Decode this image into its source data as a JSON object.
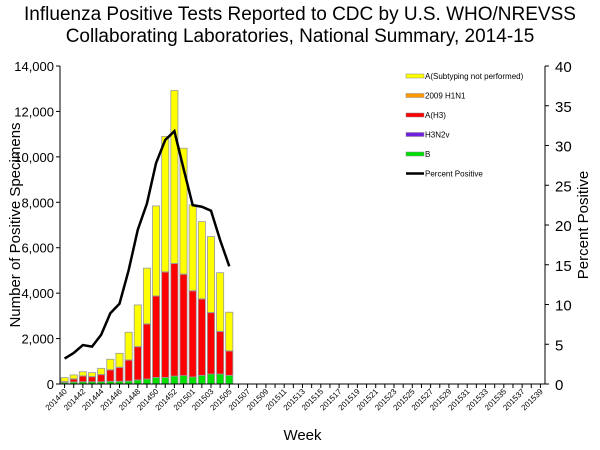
{
  "chart_data": {
    "type": "bar",
    "title_line1": "Influenza Positive Tests Reported to CDC by U.S. WHO/NREVSS",
    "title_line2": "Collaborating Laboratories, National Summary, 2014-15",
    "xlabel": "Week",
    "ylabel": "Number of Positive Specimens",
    "y2label": "Percent Positive",
    "ylim": [
      0,
      14000
    ],
    "y2lim": [
      0,
      40
    ],
    "yticks": [
      "0",
      "2,000",
      "4,000",
      "6,000",
      "8,000",
      "10,000",
      "12,000",
      "14,000"
    ],
    "y2ticks": [
      "0",
      "5",
      "10",
      "15",
      "20",
      "25",
      "30",
      "35",
      "40"
    ],
    "weeks": [
      "201440",
      "201441",
      "201442",
      "201443",
      "201444",
      "201445",
      "201446",
      "201447",
      "201448",
      "201449",
      "201450",
      "201451",
      "201452",
      "201453",
      "201501",
      "201502",
      "201503",
      "201504",
      "201505",
      "201506",
      "201507",
      "201508",
      "201509",
      "201510",
      "201511",
      "201512",
      "201513",
      "201514",
      "201515",
      "201516",
      "201517",
      "201518",
      "201519",
      "201520",
      "201521",
      "201522",
      "201523",
      "201524",
      "201525",
      "201526",
      "201527",
      "201528",
      "201529",
      "201530",
      "201531",
      "201532",
      "201533",
      "201534",
      "201535",
      "201536",
      "201537",
      "201538",
      "201539"
    ],
    "xtick_labels": [
      "201440",
      "201442",
      "201444",
      "201446",
      "201448",
      "201450",
      "201452",
      "201501",
      "201503",
      "201505",
      "201507",
      "201509",
      "201511",
      "201513",
      "201515",
      "201517",
      "201519",
      "201521",
      "201523",
      "201525",
      "201527",
      "201529",
      "201531",
      "201533",
      "201535",
      "201537",
      "201539"
    ],
    "series": [
      {
        "name": "B",
        "color": "#00e000",
        "values": [
          60,
          90,
          100,
          100,
          100,
          120,
          120,
          130,
          180,
          220,
          290,
          290,
          350,
          370,
          310,
          380,
          440,
          440,
          380
        ]
      },
      {
        "name": "H3N2v",
        "color": "#7020e0",
        "values": [
          0,
          0,
          0,
          0,
          0,
          0,
          0,
          0,
          0,
          0,
          0,
          0,
          0,
          0,
          0,
          0,
          0,
          0,
          0
        ]
      },
      {
        "name": "A(H3)",
        "color": "#ff0000",
        "values": [
          40,
          130,
          250,
          220,
          310,
          500,
          610,
          920,
          1460,
          2420,
          3580,
          4640,
          4950,
          4460,
          3790,
          3360,
          2700,
          1870,
          1070
        ]
      },
      {
        "name": "2009 H1N1",
        "color": "#ff9900",
        "values": [
          10,
          10,
          10,
          10,
          10,
          10,
          10,
          10,
          10,
          10,
          10,
          10,
          10,
          10,
          10,
          10,
          10,
          10,
          10
        ]
      },
      {
        "name": "A(Subtyping not performed)",
        "color": "#ffff00",
        "values": [
          170,
          170,
          180,
          170,
          270,
          460,
          610,
          1220,
          1830,
          2450,
          3960,
          5960,
          7610,
          5540,
          3780,
          3400,
          3340,
          2580,
          1700
        ]
      }
    ],
    "line": {
      "name": "Percent Positive",
      "color": "#000000",
      "values": [
        3.2,
        3.9,
        4.9,
        4.7,
        6.2,
        8.9,
        10.1,
        14.3,
        19.4,
        22.7,
        27.8,
        30.7,
        31.8,
        27.1,
        22.5,
        22.3,
        21.8,
        18.1,
        14.8
      ]
    },
    "legend_order": [
      "A(Subtyping not performed)",
      "2009 H1N1",
      "A(H3)",
      "H3N2v",
      "B",
      "Percent Positive"
    ],
    "legend_placement": "top-right",
    "grid": false
  }
}
